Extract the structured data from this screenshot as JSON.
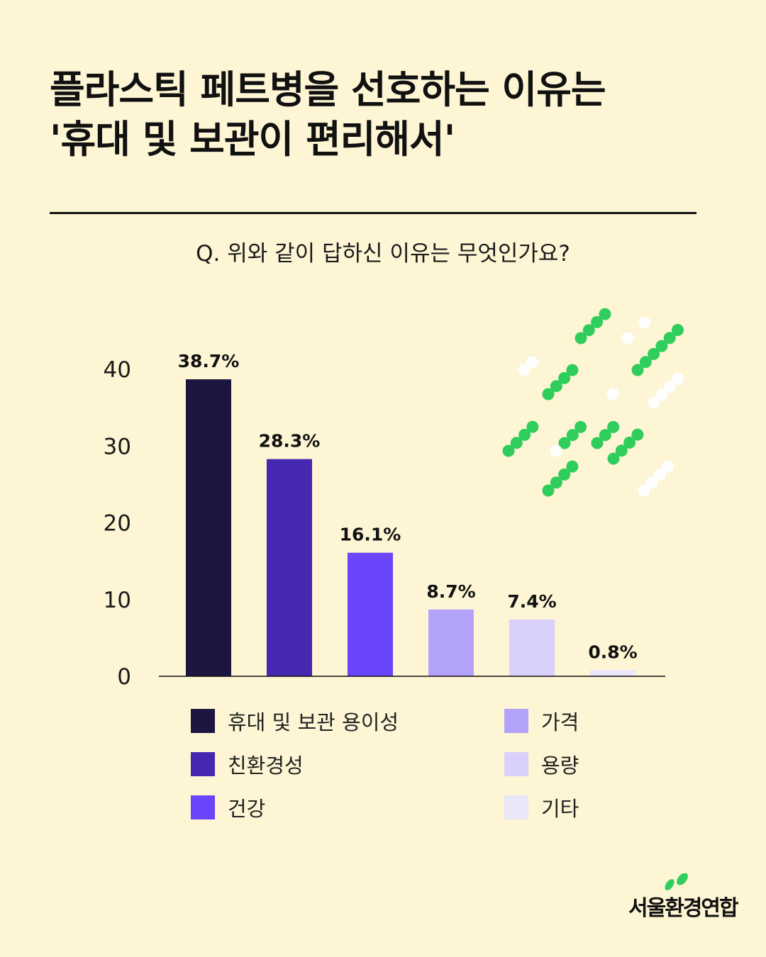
{
  "title": {
    "line1": "플라스틱 페트병을 선호하는 이유는",
    "line2": "'휴대 및 보관이 편리해서'"
  },
  "question": "Q. 위와 같이 답하신 이유는 무엇인가요?",
  "chart_data": {
    "type": "bar",
    "categories": [
      "휴대 및 보관 용이성",
      "친환경성",
      "건강",
      "가격",
      "용량",
      "기타"
    ],
    "values": [
      38.7,
      28.3,
      16.1,
      8.7,
      7.4,
      0.8
    ],
    "value_labels": [
      "38.7%",
      "28.3%",
      "16.1%",
      "8.7%",
      "7.4%",
      "0.8%"
    ],
    "colors": [
      "#1c1540",
      "#4527b0",
      "#6b45fa",
      "#b3a2fa",
      "#d9d1fb",
      "#ebe7fb"
    ],
    "yticks": [
      0,
      10,
      20,
      30,
      40
    ],
    "ylim": [
      0,
      40
    ],
    "grid": false,
    "legend_position": "bottom"
  },
  "legend": [
    {
      "label": "휴대 및 보관 용이성",
      "color": "#1c1540"
    },
    {
      "label": "친환경성",
      "color": "#4527b0"
    },
    {
      "label": "건강",
      "color": "#6b45fa"
    },
    {
      "label": "가격",
      "color": "#b3a2fa"
    },
    {
      "label": "용량",
      "color": "#d9d1fb"
    },
    {
      "label": "기타",
      "color": "#ebe7fb"
    }
  ],
  "decoration": {
    "green_color": "#2fce5c",
    "white_color": "#ffffff",
    "icon": "dotted-diagonal-lines-icon"
  },
  "logo": {
    "text": "서울환경연합",
    "leaf_color": "#2fce5c"
  }
}
